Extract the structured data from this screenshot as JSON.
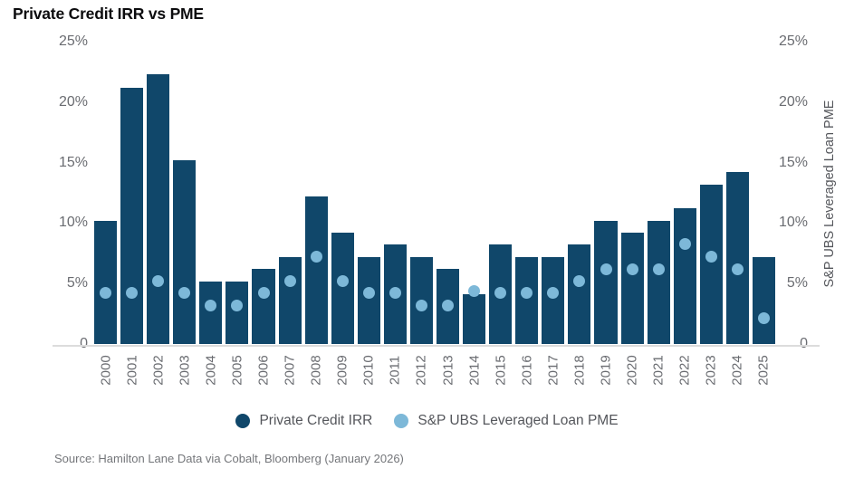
{
  "title": "Private Credit IRR vs PME",
  "right_axis": {
    "title": "S&P UBS Leveraged Loan PME"
  },
  "source": "Source: Hamilton Lane Data via Cobalt, Bloomberg (January 2026)",
  "legend": {
    "items": [
      {
        "label": "Private Credit IRR",
        "color": "#10476a"
      },
      {
        "label": "S&P UBS Leveraged Loan PME",
        "color": "#7db8d8"
      }
    ]
  },
  "colors": {
    "bar": "#10476a",
    "dot": "#7db8d8",
    "axis_text": "#6a6c71",
    "axis_line": "#dcdcdc",
    "title_text": "#0c0c0e"
  },
  "chart_data": {
    "type": "bar",
    "title": "Private Credit IRR vs PME",
    "categories": [
      "2000",
      "2001",
      "2002",
      "2003",
      "2004",
      "2005",
      "2006",
      "2007",
      "2008",
      "2009",
      "2010",
      "2011",
      "2012",
      "2013",
      "2014",
      "2015",
      "2016",
      "2017",
      "2018",
      "2019",
      "2020",
      "2021",
      "2022",
      "2023",
      "2024",
      "2025"
    ],
    "series": [
      {
        "name": "Private Credit IRR",
        "type": "bar",
        "color": "#10476a",
        "values": [
          10.2,
          21.2,
          22.3,
          15.2,
          5.2,
          5.2,
          6.2,
          7.2,
          12.2,
          9.2,
          7.2,
          8.2,
          7.2,
          6.2,
          4.1,
          8.2,
          7.2,
          7.2,
          8.2,
          10.2,
          9.2,
          10.2,
          11.2,
          13.2,
          14.2,
          7.2
        ]
      },
      {
        "name": "S&P UBS Leveraged Loan PME",
        "type": "scatter",
        "color": "#7db8d8",
        "values": [
          4.2,
          4.2,
          5.2,
          4.2,
          3.2,
          3.2,
          4.2,
          5.2,
          7.2,
          5.2,
          4.2,
          4.2,
          3.2,
          3.2,
          4.4,
          4.2,
          4.2,
          4.2,
          5.2,
          6.2,
          6.2,
          6.2,
          8.3,
          7.2,
          6.2,
          2.1
        ]
      }
    ],
    "xlabel": "",
    "ylabel_left": "",
    "ylabel_right": "S&P UBS Leveraged Loan PME",
    "ylim": [
      0,
      25
    ],
    "y_ticks": [
      {
        "label": "25%",
        "value": 25
      },
      {
        "label": "20%",
        "value": 20
      },
      {
        "label": "15%",
        "value": 15
      },
      {
        "label": "10%",
        "value": 10
      },
      {
        "label": "5%",
        "value": 5
      },
      {
        "label": "0",
        "value": 0
      }
    ],
    "grid": false,
    "legend_position": "bottom"
  }
}
